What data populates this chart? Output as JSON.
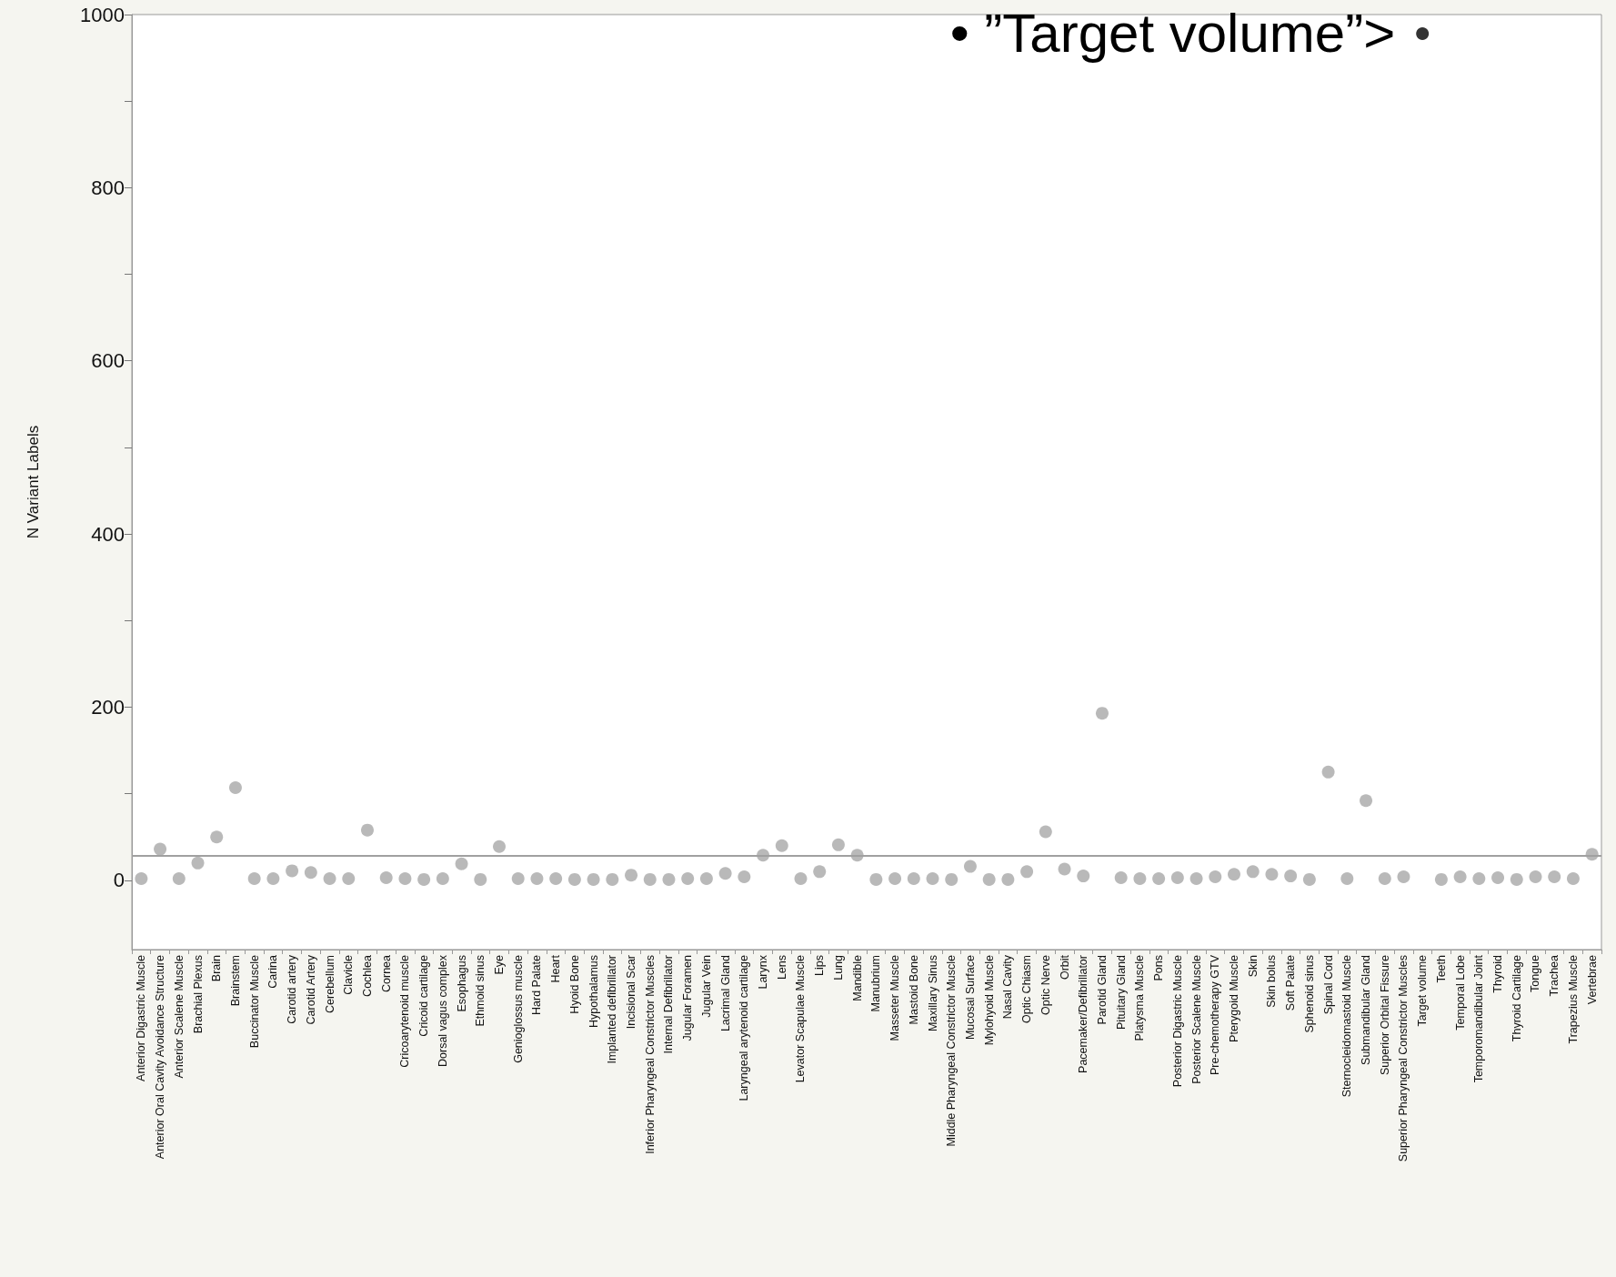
{
  "chart_data": {
    "type": "scatter",
    "ylabel": "N Variant Labels",
    "categories": [
      "Anterior Digastric Muscle",
      "Anterior Oral Cavity Avoidance Structure",
      "Anterior Scalene Muscle",
      "Brachial Plexus",
      "Brain",
      "Brainstem",
      "Buccinator Muscle",
      "Carina",
      "Carotid artery",
      "Carotid Artery",
      "Cerebellum",
      "Clavicle",
      "Cochlea",
      "Cornea",
      "Cricoarytenoid muscle",
      "Cricoid cartilage",
      "Dorsal vagus complex",
      "Esophagus",
      "Ethmoid sinus",
      "Eye",
      "Genioglossus muscle",
      "Hard Palate",
      "Heart",
      "Hyoid Bone",
      "Hypothalamus",
      "Implanted defibrillator",
      "Incisional Scar",
      "Inferior Pharyngeal Constrictor Muscles",
      "Internal Defibrillator",
      "Jugular Foramen",
      "Jugular Vein",
      "Lacrimal Gland",
      "Laryngeal arytenoid cartilage",
      "Larynx",
      "Lens",
      "Levator Scapulae Muscle",
      "Lips",
      "Lung",
      "Mandible",
      "Manubrium",
      "Masseter Muscle",
      "Mastoid Bone",
      "Maxillary Sinus",
      "Middle Pharyngeal Constrictor Muscle",
      "Mucosal Surface",
      "Mylohyoid Muscle",
      "Nasal Cavity",
      "Optic Chiasm",
      "Optic Nerve",
      "Orbit",
      "Pacemaker/Defibrillator",
      "Parotid Gland",
      "Pituitary Gland",
      "Platysma Muscle",
      "Pons",
      "Posterior Digastric Muscle",
      "Posterior Scalene Muscle",
      "Pre-chemotherapy GTV",
      "Pterygoid Muscle",
      "Skin",
      "Skin bolus",
      "Soft Palate",
      "Sphenoid sinus",
      "Spinal Cord",
      "Sternocleidomastoid Muscle",
      "Submandibular Gland",
      "Superior Orbital Fissure",
      "Superior Pharyngeal Constrictor Muscles",
      "Target volume",
      "Teeth",
      "Temporal Lobe",
      "Temporomandibular Joint",
      "Thyroid",
      "Thyroid Cartilage",
      "Tongue",
      "Trachea",
      "Trapezius Muscle",
      "Vertebrae"
    ],
    "values": [
      2,
      36,
      2,
      20,
      50,
      107,
      2,
      2,
      11,
      9,
      2,
      2,
      58,
      3,
      2,
      1,
      2,
      19,
      1,
      39,
      2,
      2,
      2,
      1,
      1,
      1,
      6,
      1,
      1,
      2,
      2,
      8,
      4,
      29,
      40,
      2,
      10,
      41,
      29,
      1,
      2,
      2,
      2,
      1,
      16,
      1,
      1,
      10,
      56,
      13,
      5,
      193,
      3,
      2,
      2,
      3,
      2,
      4,
      7,
      10,
      7,
      5,
      1,
      125,
      2,
      92,
      2,
      4,
      978,
      1,
      4,
      2,
      3,
      1,
      4,
      4,
      2,
      30
    ],
    "colors": [
      "#a8a8a8",
      "#a8a8a8",
      "#a8a8a8",
      "#a8a8a8",
      "#a8a8a8",
      "#a8a8a8",
      "#a8a8a8",
      "#a8a8a8",
      "#a8a8a8",
      "#a8a8a8",
      "#a8a8a8",
      "#a8a8a8",
      "#a8a8a8",
      "#a8a8a8",
      "#a8a8a8",
      "#a8a8a8",
      "#a8a8a8",
      "#a8a8a8",
      "#a8a8a8",
      "#a8a8a8",
      "#a8a8a8",
      "#a8a8a8",
      "#a8a8a8",
      "#a8a8a8",
      "#a8a8a8",
      "#a8a8a8",
      "#a8a8a8",
      "#a8a8a8",
      "#a8a8a8",
      "#a8a8a8",
      "#a8a8a8",
      "#a8a8a8",
      "#a8a8a8",
      "#a8a8a8",
      "#a8a8a8",
      "#a8a8a8",
      "#a8a8a8",
      "#a8a8a8",
      "#a8a8a8",
      "#a8a8a8",
      "#a8a8a8",
      "#a8a8a8",
      "#a8a8a8",
      "#a8a8a8",
      "#a8a8a8",
      "#a8a8a8",
      "#a8a8a8",
      "#a8a8a8",
      "#a8a8a8",
      "#a8a8a8",
      "#a8a8a8",
      "#a8a8a8",
      "#a8a8a8",
      "#a8a8a8",
      "#a8a8a8",
      "#a8a8a8",
      "#a8a8a8",
      "#a8a8a8",
      "#a8a8a8",
      "#a8a8a8",
      "#a8a8a8",
      "#a8a8a8",
      "#a8a8a8",
      "#a8a8a8",
      "#a8a8a8",
      "#a8a8a8",
      "#a8a8a8",
      "#a8a8a8",
      "#000000",
      "#a8a8a8",
      "#a8a8a8",
      "#a8a8a8",
      "#a8a8a8",
      "#a8a8a8",
      "#a8a8a8",
      "#a8a8a8",
      "#a8a8a8",
      "#a8a8a8"
    ],
    "ylim": [
      -80,
      1000
    ],
    "yticks": [
      0,
      {
        "value": 100,
        "label": null
      },
      200,
      {
        "value": 300,
        "label": null
      },
      400,
      {
        "value": 500,
        "label": null
      },
      600,
      {
        "value": 700,
        "label": null
      },
      800,
      {
        "value": 900,
        "label": null
      },
      1000
    ],
    "ref_lines": [
      {
        "axis": "y",
        "value": 28,
        "color": "#a0a0a0"
      }
    ],
    "annotations": [
      {
        "text": "• ”Target volume”>",
        "x": "Target volume",
        "y": 978
      }
    ],
    "marker": "circle"
  }
}
